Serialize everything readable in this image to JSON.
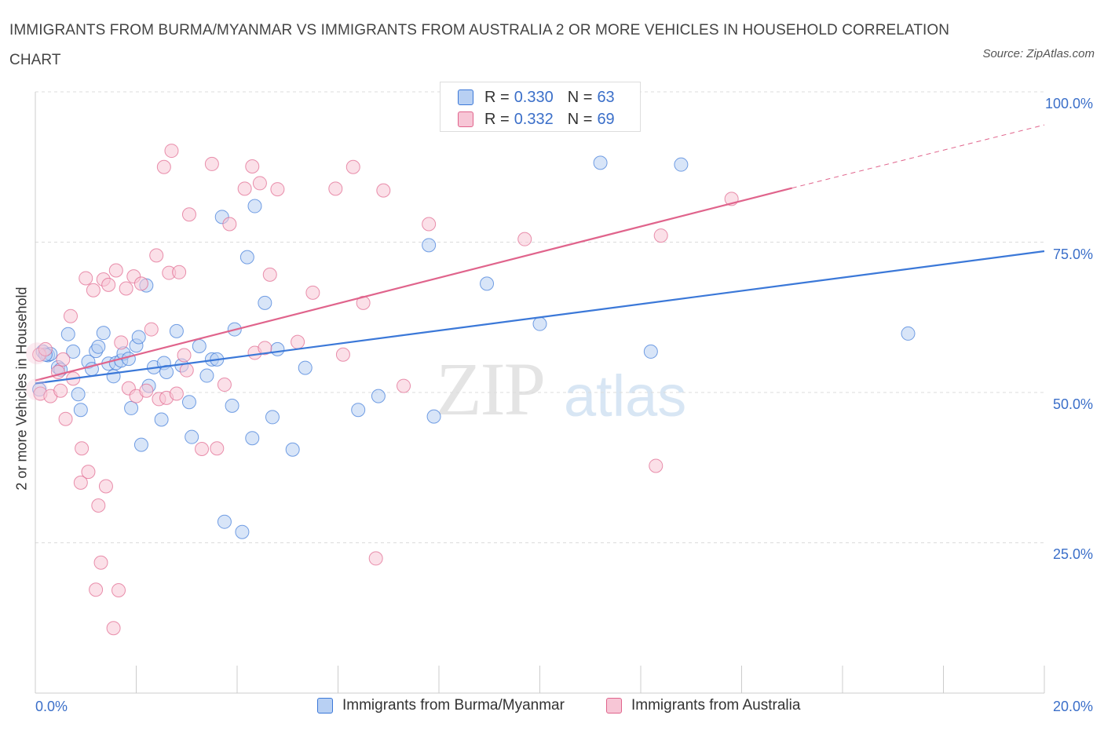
{
  "title": "IMMIGRANTS FROM BURMA/MYANMAR VS IMMIGRANTS FROM AUSTRALIA 2 OR MORE VEHICLES IN HOUSEHOLD CORRELATION CHART",
  "source": "Source: ZipAtlas.com",
  "watermark": {
    "zip": "ZIP",
    "atlas": "atlas"
  },
  "colors": {
    "blue": "#3b78d8",
    "blue_fill": "#b8d0f3",
    "pink": "#e0648c",
    "pink_fill": "#f7c6d6",
    "axis_text": "#3b6fc9"
  },
  "legend": {
    "blue": {
      "r_label": "R =",
      "r_value": "0.330",
      "n_label": "N =",
      "n_value": "63"
    },
    "pink": {
      "r_label": "R =",
      "r_value": "0.332",
      "n_label": "N =",
      "n_value": "69"
    }
  },
  "bottom_legend": {
    "blue_label": "Immigrants from Burma/Myanmar",
    "pink_label": "Immigrants from Australia"
  },
  "chart_data": {
    "type": "scatter",
    "xlabel": "",
    "ylabel": "2 or more Vehicles in Household",
    "xlim": [
      0,
      20
    ],
    "ylim": [
      0,
      100
    ],
    "x_tick_labels": [
      "0.0%",
      "20.0%"
    ],
    "y_tick_labels": [
      "100.0%",
      "75.0%",
      "50.0%",
      "25.0%"
    ],
    "y_ticks": [
      100,
      75,
      50,
      25
    ],
    "grid": true,
    "legend_position": "top-center",
    "series": [
      {
        "name": "Immigrants from Burma/Myanmar",
        "color": "blue",
        "trend": {
          "x0": 0,
          "y0": 51.5,
          "x1": 20,
          "y1": 73.5
        },
        "points": [
          [
            0.08,
            50.5
          ],
          [
            0.15,
            56.8
          ],
          [
            0.25,
            56.2
          ],
          [
            0.3,
            56.4
          ],
          [
            0.45,
            54.2
          ],
          [
            0.5,
            53.8
          ],
          [
            0.65,
            59.7
          ],
          [
            0.75,
            56.8
          ],
          [
            0.85,
            49.7
          ],
          [
            0.9,
            47.1
          ],
          [
            1.05,
            55.1
          ],
          [
            1.12,
            53.9
          ],
          [
            1.2,
            56.9
          ],
          [
            1.25,
            57.6
          ],
          [
            1.35,
            59.9
          ],
          [
            1.45,
            54.8
          ],
          [
            1.55,
            52.7
          ],
          [
            1.6,
            54.9
          ],
          [
            1.7,
            55.3
          ],
          [
            1.75,
            56.5
          ],
          [
            1.85,
            55.6
          ],
          [
            1.9,
            47.4
          ],
          [
            2.0,
            57.8
          ],
          [
            2.05,
            59.2
          ],
          [
            2.1,
            41.3
          ],
          [
            2.2,
            67.8
          ],
          [
            2.25,
            51.1
          ],
          [
            2.35,
            54.2
          ],
          [
            2.5,
            45.5
          ],
          [
            2.55,
            54.9
          ],
          [
            2.6,
            53.4
          ],
          [
            2.8,
            60.2
          ],
          [
            2.9,
            54.5
          ],
          [
            3.05,
            48.4
          ],
          [
            3.1,
            42.6
          ],
          [
            3.25,
            57.7
          ],
          [
            3.4,
            52.8
          ],
          [
            3.5,
            55.5
          ],
          [
            3.6,
            55.5
          ],
          [
            3.7,
            79.2
          ],
          [
            3.75,
            28.5
          ],
          [
            3.9,
            47.8
          ],
          [
            3.95,
            60.5
          ],
          [
            4.1,
            26.8
          ],
          [
            4.2,
            72.5
          ],
          [
            4.3,
            42.4
          ],
          [
            4.35,
            81.0
          ],
          [
            4.55,
            64.9
          ],
          [
            4.7,
            45.9
          ],
          [
            4.8,
            57.2
          ],
          [
            5.1,
            40.5
          ],
          [
            5.35,
            54.1
          ],
          [
            6.4,
            47.1
          ],
          [
            6.8,
            49.4
          ],
          [
            7.8,
            74.5
          ],
          [
            7.9,
            46.0
          ],
          [
            8.95,
            68.1
          ],
          [
            10.0,
            61.4
          ],
          [
            11.2,
            88.2
          ],
          [
            12.2,
            56.8
          ],
          [
            12.8,
            87.9
          ],
          [
            17.3,
            59.8
          ],
          [
            0.2,
            56.3
          ]
        ]
      },
      {
        "name": "Immigrants from Australia",
        "color": "pink",
        "trend": {
          "x0": 0,
          "y0": 52,
          "x1": 15,
          "y1": 84,
          "dash_x1": 20,
          "dash_y1": 94.5
        },
        "points": [
          [
            0.08,
            56.3
          ],
          [
            0.1,
            49.8
          ],
          [
            0.2,
            57.2
          ],
          [
            0.3,
            49.4
          ],
          [
            0.45,
            53.4
          ],
          [
            0.5,
            50.3
          ],
          [
            0.55,
            55.5
          ],
          [
            0.6,
            45.6
          ],
          [
            0.7,
            62.7
          ],
          [
            0.75,
            52.3
          ],
          [
            0.9,
            35.0
          ],
          [
            0.92,
            40.7
          ],
          [
            1.0,
            69.0
          ],
          [
            1.05,
            36.8
          ],
          [
            1.15,
            67.0
          ],
          [
            1.2,
            17.2
          ],
          [
            1.25,
            31.2
          ],
          [
            1.3,
            21.7
          ],
          [
            1.35,
            68.8
          ],
          [
            1.4,
            34.4
          ],
          [
            1.45,
            67.9
          ],
          [
            1.55,
            10.8
          ],
          [
            1.6,
            70.3
          ],
          [
            1.65,
            17.1
          ],
          [
            1.7,
            58.3
          ],
          [
            1.8,
            67.3
          ],
          [
            1.85,
            50.7
          ],
          [
            1.95,
            69.3
          ],
          [
            2.0,
            49.4
          ],
          [
            2.1,
            68.1
          ],
          [
            2.2,
            50.3
          ],
          [
            2.3,
            60.5
          ],
          [
            2.4,
            72.8
          ],
          [
            2.45,
            48.9
          ],
          [
            2.55,
            87.5
          ],
          [
            2.6,
            49.1
          ],
          [
            2.65,
            69.9
          ],
          [
            2.7,
            90.2
          ],
          [
            2.8,
            49.8
          ],
          [
            2.85,
            70.0
          ],
          [
            2.95,
            56.2
          ],
          [
            3.0,
            53.7
          ],
          [
            3.05,
            79.6
          ],
          [
            3.3,
            40.6
          ],
          [
            3.5,
            88.0
          ],
          [
            3.6,
            40.7
          ],
          [
            3.75,
            51.3
          ],
          [
            3.85,
            78.0
          ],
          [
            4.15,
            83.9
          ],
          [
            4.3,
            87.6
          ],
          [
            4.35,
            56.6
          ],
          [
            4.45,
            84.8
          ],
          [
            4.55,
            57.4
          ],
          [
            4.65,
            69.6
          ],
          [
            4.8,
            83.8
          ],
          [
            5.2,
            58.4
          ],
          [
            5.5,
            66.6
          ],
          [
            5.95,
            83.9
          ],
          [
            6.1,
            56.3
          ],
          [
            6.3,
            87.5
          ],
          [
            6.5,
            64.9
          ],
          [
            6.75,
            22.4
          ],
          [
            6.9,
            83.6
          ],
          [
            7.3,
            51.1
          ],
          [
            7.8,
            78.0
          ],
          [
            9.7,
            75.5
          ],
          [
            12.3,
            37.8
          ],
          [
            12.4,
            76.1
          ],
          [
            13.8,
            82.2
          ]
        ]
      }
    ]
  }
}
